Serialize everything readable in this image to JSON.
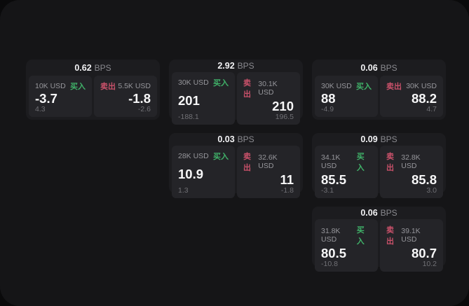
{
  "labels": {
    "bps": "BPS",
    "buy": "买入",
    "sell": "卖出"
  },
  "colors": {
    "buy_green": "#40b269",
    "sell_red": "#c9516a",
    "window_bg": "#151517",
    "card_bg": "#1c1c1f",
    "panel_bg": "#242428"
  },
  "cards": [
    {
      "bps": "0.62",
      "col": 1,
      "row": 1,
      "buy": {
        "amount": "10K USD",
        "value": "-3.7",
        "sub": "4.3"
      },
      "sell": {
        "amount": "5.5K USD",
        "value": "-1.8",
        "sub": "-2.6"
      }
    },
    {
      "bps": "2.92",
      "col": 2,
      "row": 1,
      "buy": {
        "amount": "30K USD",
        "value": "201",
        "sub": "-188.1"
      },
      "sell": {
        "amount": "30.1K USD",
        "value": "210",
        "sub": "196.5"
      }
    },
    {
      "bps": "0.06",
      "col": 3,
      "row": 1,
      "buy": {
        "amount": "30K USD",
        "value": "88",
        "sub": "-4.9"
      },
      "sell": {
        "amount": "30K USD",
        "value": "88.2",
        "sub": "4.7"
      }
    },
    {
      "bps": "0.03",
      "col": 2,
      "row": 2,
      "buy": {
        "amount": "28K USD",
        "value": "10.9",
        "sub": "1.3"
      },
      "sell": {
        "amount": "32.6K USD",
        "value": "11",
        "sub": "-1.8"
      }
    },
    {
      "bps": "0.09",
      "col": 3,
      "row": 2,
      "buy": {
        "amount": "34.1K USD",
        "value": "85.5",
        "sub": "-3.1"
      },
      "sell": {
        "amount": "32.8K USD",
        "value": "85.8",
        "sub": "3.0"
      }
    },
    {
      "bps": "0.06",
      "col": 3,
      "row": 3,
      "buy": {
        "amount": "31.8K USD",
        "value": "80.5",
        "sub": "-10.8"
      },
      "sell": {
        "amount": "39.1K USD",
        "value": "80.7",
        "sub": "10.2"
      }
    }
  ]
}
